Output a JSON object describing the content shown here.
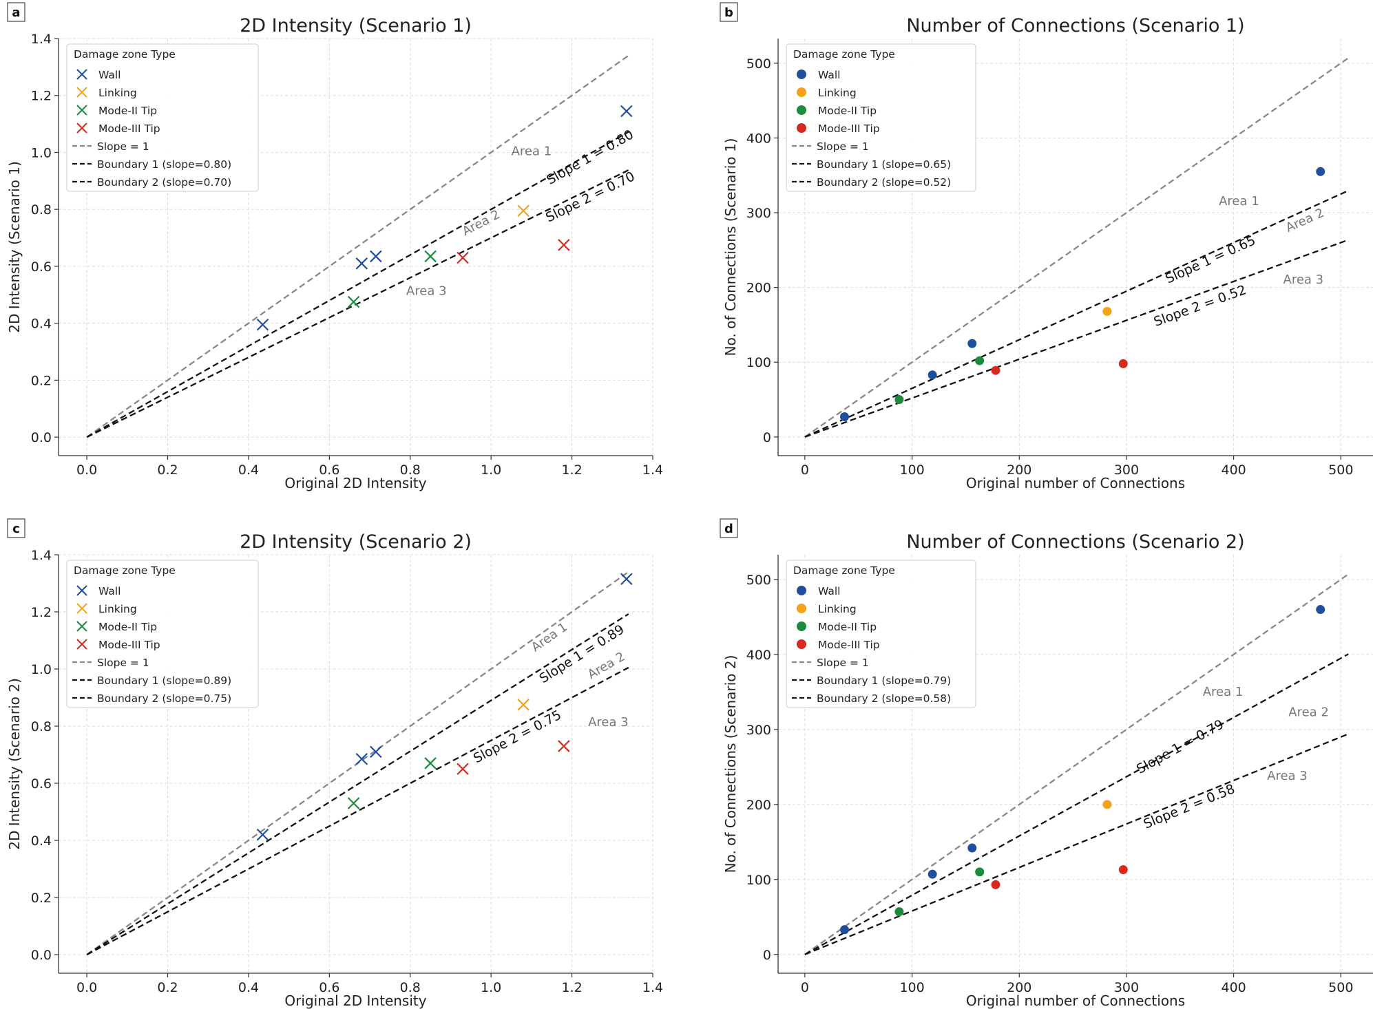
{
  "chart_data": [
    {
      "type": "scatter",
      "panel": "a",
      "title": "2D Intensity (Scenario 1)",
      "xlabel": "Original 2D Intensity",
      "ylabel": "2D Intensity (Scenario 1)",
      "xlim": [
        -0.07,
        1.4
      ],
      "ylim": [
        -0.065,
        1.4
      ],
      "xticks": [
        0.0,
        0.2,
        0.4,
        0.6,
        0.8,
        1.0,
        1.2,
        1.4
      ],
      "xtick_labels": [
        "0.0",
        "0.2",
        "0.4",
        "0.6",
        "0.8",
        "1.0",
        "1.2",
        "1.4"
      ],
      "yticks": [
        0.0,
        0.2,
        0.4,
        0.6,
        0.8,
        1.0,
        1.2,
        1.4
      ],
      "ytick_labels": [
        "0.0",
        "0.2",
        "0.4",
        "0.6",
        "0.8",
        "1.0",
        "1.2",
        "1.4"
      ],
      "grid": true,
      "marker": "x",
      "line_end": 1.34,
      "legend": {
        "title": "Damage zone Type",
        "location": "upper-left",
        "entries": [
          "Wall",
          "Linking",
          "Mode-II Tip",
          "Mode-III Tip",
          "Slope = 1",
          "Boundary 1 (slope=0.80)",
          "Boundary 2 (slope=0.70)"
        ]
      },
      "series": [
        {
          "name": "Wall",
          "color": "#1f4e9c",
          "points": [
            [
              0.435,
              0.395
            ],
            [
              0.68,
              0.61
            ],
            [
              0.715,
              0.635
            ],
            [
              1.335,
              1.145
            ]
          ]
        },
        {
          "name": "Linking",
          "color": "#f2a31b",
          "points": [
            [
              1.08,
              0.795
            ]
          ]
        },
        {
          "name": "Mode-II Tip",
          "color": "#1e8a3c",
          "points": [
            [
              0.66,
              0.475
            ],
            [
              0.85,
              0.635
            ]
          ]
        },
        {
          "name": "Mode-III Tip",
          "color": "#d62a22",
          "points": [
            [
              0.93,
              0.63
            ],
            [
              1.18,
              0.675
            ]
          ]
        }
      ],
      "lines": [
        {
          "name": "Slope = 1",
          "slope": 1.0,
          "color": "#888888"
        },
        {
          "name": "Boundary 1",
          "slope": 0.8,
          "color": "#111111"
        },
        {
          "name": "Boundary 2",
          "slope": 0.7,
          "color": "#111111"
        }
      ],
      "annotations": [
        {
          "text": "Slope 1 = 0.80",
          "x": 1.25,
          "y": 0.97,
          "slope": 0.8,
          "style": "dark"
        },
        {
          "text": "Slope 2 = 0.70",
          "x": 1.25,
          "y": 0.83,
          "slope": 0.7,
          "style": "dark"
        },
        {
          "text": "Area 1",
          "x": 1.1,
          "y": 0.99,
          "slope": 0,
          "style": "gray"
        },
        {
          "text": "Area 2",
          "x": 0.98,
          "y": 0.74,
          "slope": 0.75,
          "style": "gray"
        },
        {
          "text": "Area 3",
          "x": 0.84,
          "y": 0.5,
          "slope": 0,
          "style": "gray"
        }
      ]
    },
    {
      "type": "scatter",
      "panel": "b",
      "title": "Number of Connections (Scenario 1)",
      "xlabel": "Original number of Connections",
      "ylabel": "No. of Connections (Scenario 1)",
      "xlim": [
        -25,
        530
      ],
      "ylim": [
        -25,
        533
      ],
      "xticks": [
        0,
        100,
        200,
        300,
        400,
        500
      ],
      "xtick_labels": [
        "0",
        "100",
        "200",
        "300",
        "400",
        "500"
      ],
      "yticks": [
        0,
        100,
        200,
        300,
        400,
        500
      ],
      "ytick_labels": [
        "0",
        "100",
        "200",
        "300",
        "400",
        "500"
      ],
      "grid": true,
      "marker": "o",
      "line_end": 507,
      "legend": {
        "title": "Damage zone Type",
        "location": "upper-left",
        "entries": [
          "Wall",
          "Linking",
          "Mode-II Tip",
          "Mode-III Tip",
          "Slope = 1",
          "Boundary 1 (slope=0.65)",
          "Boundary 2 (slope=0.52)"
        ]
      },
      "series": [
        {
          "name": "Wall",
          "color": "#1f4e9c",
          "points": [
            [
              37,
              27
            ],
            [
              119,
              83
            ],
            [
              156,
              125
            ],
            [
              481,
              355
            ]
          ]
        },
        {
          "name": "Linking",
          "color": "#f2a31b",
          "points": [
            [
              282,
              168
            ]
          ]
        },
        {
          "name": "Mode-II Tip",
          "color": "#1e8a3c",
          "points": [
            [
              88,
              50
            ],
            [
              163,
              102
            ]
          ]
        },
        {
          "name": "Mode-III Tip",
          "color": "#d62a22",
          "points": [
            [
              178,
              89
            ],
            [
              297,
              98
            ]
          ]
        }
      ],
      "lines": [
        {
          "name": "Slope = 1",
          "slope": 1.0,
          "color": "#888888"
        },
        {
          "name": "Boundary 1",
          "slope": 0.65,
          "color": "#111111"
        },
        {
          "name": "Boundary 2",
          "slope": 0.52,
          "color": "#111111"
        }
      ],
      "annotations": [
        {
          "text": "Slope 1 = 0.65",
          "x": 380,
          "y": 232,
          "slope": 0.65,
          "style": "dark"
        },
        {
          "text": "Slope 2 = 0.52",
          "x": 370,
          "y": 170,
          "slope": 0.52,
          "style": "dark"
        },
        {
          "text": "Area 1",
          "x": 405,
          "y": 310,
          "slope": 0,
          "style": "gray"
        },
        {
          "text": "Area 2",
          "x": 468,
          "y": 285,
          "slope": 0.65,
          "style": "gray"
        },
        {
          "text": "Area 3",
          "x": 465,
          "y": 205,
          "slope": 0,
          "style": "gray"
        }
      ]
    },
    {
      "type": "scatter",
      "panel": "c",
      "title": "2D Intensity (Scenario 2)",
      "xlabel": "Original 2D Intensity",
      "ylabel": "2D Intensity (Scenario 2)",
      "xlim": [
        -0.07,
        1.4
      ],
      "ylim": [
        -0.065,
        1.4
      ],
      "xticks": [
        0.0,
        0.2,
        0.4,
        0.6,
        0.8,
        1.0,
        1.2,
        1.4
      ],
      "xtick_labels": [
        "0.0",
        "0.2",
        "0.4",
        "0.6",
        "0.8",
        "1.0",
        "1.2",
        "1.4"
      ],
      "yticks": [
        0.0,
        0.2,
        0.4,
        0.6,
        0.8,
        1.0,
        1.2,
        1.4
      ],
      "ytick_labels": [
        "0.0",
        "0.2",
        "0.4",
        "0.6",
        "0.8",
        "1.0",
        "1.2",
        "1.4"
      ],
      "grid": true,
      "marker": "x",
      "line_end": 1.34,
      "legend": {
        "title": "Damage zone Type",
        "location": "upper-left",
        "entries": [
          "Wall",
          "Linking",
          "Mode-II Tip",
          "Mode-III Tip",
          "Slope = 1",
          "Boundary 1 (slope=0.89)",
          "Boundary 2 (slope=0.75)"
        ]
      },
      "series": [
        {
          "name": "Wall",
          "color": "#1f4e9c",
          "points": [
            [
              0.435,
              0.42
            ],
            [
              0.68,
              0.685
            ],
            [
              0.715,
              0.71
            ],
            [
              1.335,
              1.315
            ]
          ]
        },
        {
          "name": "Linking",
          "color": "#f2a31b",
          "points": [
            [
              1.08,
              0.875
            ]
          ]
        },
        {
          "name": "Mode-II Tip",
          "color": "#1e8a3c",
          "points": [
            [
              0.66,
              0.53
            ],
            [
              0.85,
              0.67
            ]
          ]
        },
        {
          "name": "Mode-III Tip",
          "color": "#d62a22",
          "points": [
            [
              0.93,
              0.65
            ],
            [
              1.18,
              0.73
            ]
          ]
        }
      ],
      "lines": [
        {
          "name": "Slope = 1",
          "slope": 1.0,
          "color": "#888888"
        },
        {
          "name": "Boundary 1",
          "slope": 0.89,
          "color": "#111111"
        },
        {
          "name": "Boundary 2",
          "slope": 0.75,
          "color": "#111111"
        }
      ],
      "annotations": [
        {
          "text": "Slope 1 = 0.89",
          "x": 1.23,
          "y": 1.04,
          "slope": 0.89,
          "style": "dark"
        },
        {
          "text": "Slope 2 = 0.75",
          "x": 1.07,
          "y": 0.75,
          "slope": 0.75,
          "style": "dark"
        },
        {
          "text": "Area 1",
          "x": 1.15,
          "y": 1.1,
          "slope": 1.0,
          "style": "gray"
        },
        {
          "text": "Area 2",
          "x": 1.29,
          "y": 1.0,
          "slope": 0.82,
          "style": "gray"
        },
        {
          "text": "Area 3",
          "x": 1.29,
          "y": 0.8,
          "slope": 0,
          "style": "gray"
        }
      ]
    },
    {
      "type": "scatter",
      "panel": "d",
      "title": "Number of Connections (Scenario 2)",
      "xlabel": "Original number of Connections",
      "ylabel": "No. of Connections (Scenario 2)",
      "xlim": [
        -25,
        530
      ],
      "ylim": [
        -25,
        533
      ],
      "xticks": [
        0,
        100,
        200,
        300,
        400,
        500
      ],
      "xtick_labels": [
        "0",
        "100",
        "200",
        "300",
        "400",
        "500"
      ],
      "yticks": [
        0,
        100,
        200,
        300,
        400,
        500
      ],
      "ytick_labels": [
        "0",
        "100",
        "200",
        "300",
        "400",
        "500"
      ],
      "grid": true,
      "marker": "o",
      "line_end": 507,
      "legend": {
        "title": "Damage zone Type",
        "location": "upper-left",
        "entries": [
          "Wall",
          "Linking",
          "Mode-II Tip",
          "Mode-III Tip",
          "Slope = 1",
          "Boundary 1 (slope=0.79)",
          "Boundary 2 (slope=0.58)"
        ]
      },
      "series": [
        {
          "name": "Wall",
          "color": "#1f4e9c",
          "points": [
            [
              37,
              33
            ],
            [
              119,
              107
            ],
            [
              156,
              142
            ],
            [
              481,
              460
            ]
          ]
        },
        {
          "name": "Linking",
          "color": "#f2a31b",
          "points": [
            [
              282,
              200
            ]
          ]
        },
        {
          "name": "Mode-II Tip",
          "color": "#1e8a3c",
          "points": [
            [
              88,
              57
            ],
            [
              163,
              110
            ]
          ]
        },
        {
          "name": "Mode-III Tip",
          "color": "#d62a22",
          "points": [
            [
              178,
              93
            ],
            [
              297,
              113
            ]
          ]
        }
      ],
      "lines": [
        {
          "name": "Slope = 1",
          "slope": 1.0,
          "color": "#888888"
        },
        {
          "name": "Boundary 1",
          "slope": 0.79,
          "color": "#111111"
        },
        {
          "name": "Boundary 2",
          "slope": 0.58,
          "color": "#111111"
        }
      ],
      "annotations": [
        {
          "text": "Slope 1 = 0.79",
          "x": 352,
          "y": 272,
          "slope": 0.79,
          "style": "dark"
        },
        {
          "text": "Slope 2 = 0.58",
          "x": 360,
          "y": 192,
          "slope": 0.58,
          "style": "dark"
        },
        {
          "text": "Area 1",
          "x": 390,
          "y": 345,
          "slope": 0,
          "style": "gray"
        },
        {
          "text": "Area 2",
          "x": 470,
          "y": 318,
          "slope": 0,
          "style": "gray"
        },
        {
          "text": "Area 3",
          "x": 450,
          "y": 233,
          "slope": 0,
          "style": "gray"
        }
      ]
    }
  ]
}
